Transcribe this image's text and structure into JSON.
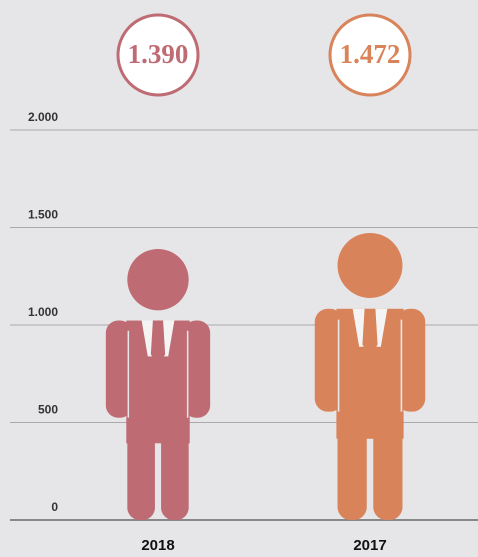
{
  "chart_data": {
    "type": "pictograph",
    "categories": [
      "2018",
      "2017"
    ],
    "values": [
      1390,
      1472
    ],
    "value_labels": [
      "1.390",
      "1.472"
    ],
    "colors": [
      "#bf6b73",
      "#d9835a"
    ],
    "ylim": [
      0,
      2000
    ],
    "yticks": [
      0,
      500,
      {
        "value": 1000,
        "label": "1.000"
      },
      {
        "value": 1500,
        "label": "1.500"
      },
      {
        "value": 2000,
        "label": "2.000"
      }
    ],
    "grid": true
  }
}
